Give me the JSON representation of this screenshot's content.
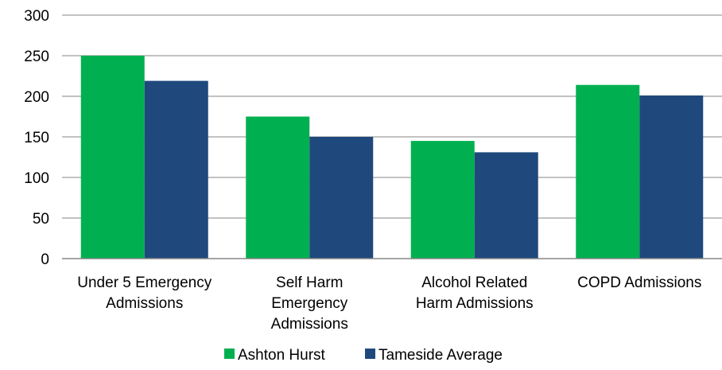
{
  "chart_data": {
    "type": "bar",
    "categories": [
      [
        "Under 5 Emergency",
        "Admissions"
      ],
      [
        "Self Harm",
        "Emergency",
        "Admissions"
      ],
      [
        "Alcohol Related",
        "Harm Admissions"
      ],
      [
        "COPD Admissions"
      ]
    ],
    "series": [
      {
        "name": "Ashton Hurst",
        "color": "#00b050",
        "values": [
          250,
          175,
          145,
          214
        ]
      },
      {
        "name": "Tameside Average",
        "color": "#1f497d",
        "values": [
          219,
          150,
          131,
          201
        ]
      }
    ],
    "ylim": [
      0,
      300
    ],
    "yticks": [
      "0",
      "50",
      "100",
      "150",
      "200",
      "250",
      "300"
    ],
    "grid": true,
    "legend_position": "bottom"
  }
}
